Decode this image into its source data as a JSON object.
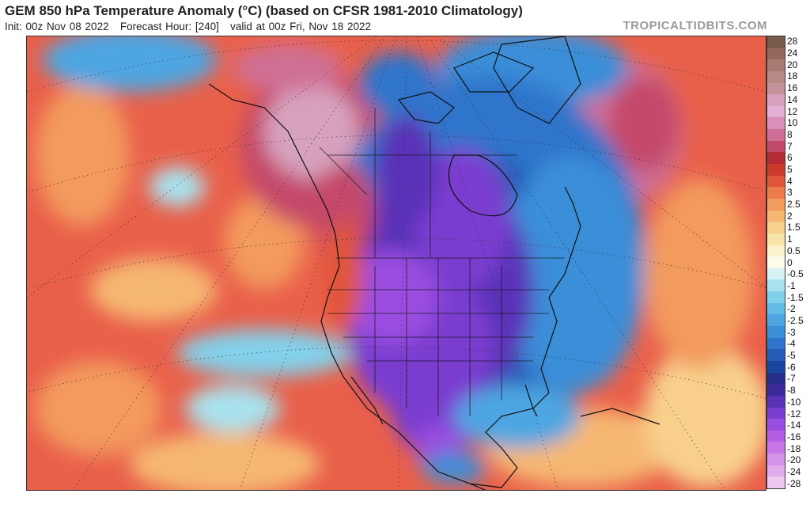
{
  "header": {
    "title": "GEM 850 hPa Temperature Anomaly (°C) (based on CFSR 1981-2010 Climatology)",
    "subtitle": "Init: 00z Nov 08 2022   Forecast Hour: [240]   valid at 00z Fri, Nov 18 2022",
    "credit": "TROPICALTIDBITS.COM"
  },
  "legend": {
    "ticks": [
      "28",
      "24",
      "20",
      "18",
      "16",
      "14",
      "12",
      "10",
      "8",
      "7",
      "6",
      "5",
      "4",
      "3",
      "2.5",
      "2",
      "1.5",
      "1",
      "0.5",
      "0",
      "-0.5",
      "-1",
      "-1.5",
      "-2",
      "-2.5",
      "-3",
      "-4",
      "-5",
      "-6",
      "-7",
      "-8",
      "-10",
      "-12",
      "-14",
      "-16",
      "-18",
      "-20",
      "-24",
      "-28"
    ],
    "colors": [
      "#7a5a4a",
      "#946a5c",
      "#a87b72",
      "#b88a88",
      "#c4939a",
      "#d7a2be",
      "#e3b0d6",
      "#db8fb8",
      "#cf6f96",
      "#c44a6a",
      "#b22b35",
      "#cc3a2c",
      "#e0553a",
      "#ee7b4d",
      "#f39a5d",
      "#f6b772",
      "#f8d08c",
      "#f9e4a8",
      "#fbf2cc",
      "#fdfbe9",
      "#d6f2f2",
      "#a8e2ee",
      "#82d1ec",
      "#64bde9",
      "#4da6e2",
      "#3b8ed8",
      "#2f74cb",
      "#245cb8",
      "#1a46a0",
      "#262e8c",
      "#3a2a9a",
      "#5a32b8",
      "#7a3ed0",
      "#9a4ee0",
      "#b45ee4",
      "#c676e6",
      "#d492e8",
      "#e0acec",
      "#eec8f0"
    ]
  },
  "map": {
    "region": "North America and adjacent Pacific/Atlantic",
    "colors": {
      "warm_anomaly": "#e9604a",
      "strong_warm": "#c44a6a",
      "very_strong_warm": "#d7a2be",
      "cold_anomaly": "#2f74cb",
      "strong_cold": "#5a32b8",
      "very_strong_cold": "#9a4ee0",
      "slight_positive": "#f6b772",
      "slight_negative": "#82d1ec"
    }
  }
}
